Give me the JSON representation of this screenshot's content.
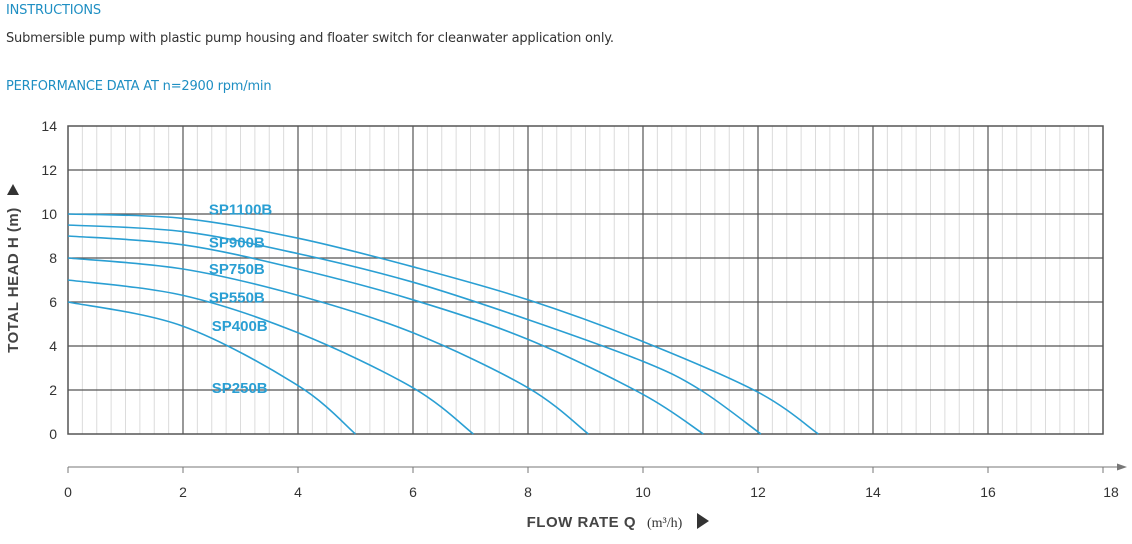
{
  "header": {
    "instructions_title": "INSTRUCTIONS",
    "description": "Submersible pump with plastic pump housing and floater switch for cleanwater application only.",
    "performance_title": "PERFORMANCE DATA AT n=2900 rpm/min"
  },
  "chart_data": {
    "type": "line",
    "title": "",
    "xlabel": "FLOW RATE Q",
    "xlabel_unit": "(m³/h)",
    "ylabel": "TOTAL HEAD H (m)",
    "xlim": [
      0,
      18
    ],
    "ylim": [
      0,
      14
    ],
    "x_ticks": [
      0,
      2,
      4,
      6,
      8,
      10,
      12,
      14,
      16,
      18
    ],
    "y_ticks": [
      0,
      2,
      4,
      6,
      8,
      10,
      12,
      14
    ],
    "grid": true,
    "line_color": "#2a9fd3",
    "series": [
      {
        "name": "SP1100B",
        "x": [
          0,
          2,
          4,
          6,
          8,
          10,
          12,
          13.05
        ],
        "y": [
          10,
          9.8,
          8.9,
          7.6,
          6.1,
          4.2,
          1.9,
          0
        ]
      },
      {
        "name": "SP900B",
        "x": [
          0,
          2,
          4,
          6,
          8,
          10,
          11,
          12.05
        ],
        "y": [
          9.5,
          9.2,
          8.2,
          6.9,
          5.2,
          3.3,
          2.0,
          0
        ]
      },
      {
        "name": "SP750B",
        "x": [
          0,
          2,
          4,
          6,
          8,
          10,
          11.05
        ],
        "y": [
          9.0,
          8.6,
          7.5,
          6.1,
          4.3,
          1.8,
          0
        ]
      },
      {
        "name": "SP550B",
        "x": [
          0,
          2,
          4,
          6,
          8,
          9.05
        ],
        "y": [
          8.0,
          7.5,
          6.3,
          4.6,
          2.1,
          0
        ]
      },
      {
        "name": "SP400B",
        "x": [
          0,
          2,
          4,
          6,
          7.05
        ],
        "y": [
          7.0,
          6.3,
          4.6,
          2.1,
          0
        ]
      },
      {
        "name": "SP250B",
        "x": [
          0,
          2,
          4,
          5.0
        ],
        "y": [
          6.0,
          4.9,
          2.2,
          0
        ]
      }
    ],
    "label_positions": [
      {
        "name": "SP1100B",
        "x": 2.45,
        "y": 10.2
      },
      {
        "name": "SP900B",
        "x": 2.45,
        "y": 8.7
      },
      {
        "name": "SP750B",
        "x": 2.45,
        "y": 7.5
      },
      {
        "name": "SP550B",
        "x": 2.45,
        "y": 6.2
      },
      {
        "name": "SP400B",
        "x": 2.5,
        "y": 4.9
      },
      {
        "name": "SP250B",
        "x": 2.5,
        "y": 2.1
      }
    ]
  }
}
